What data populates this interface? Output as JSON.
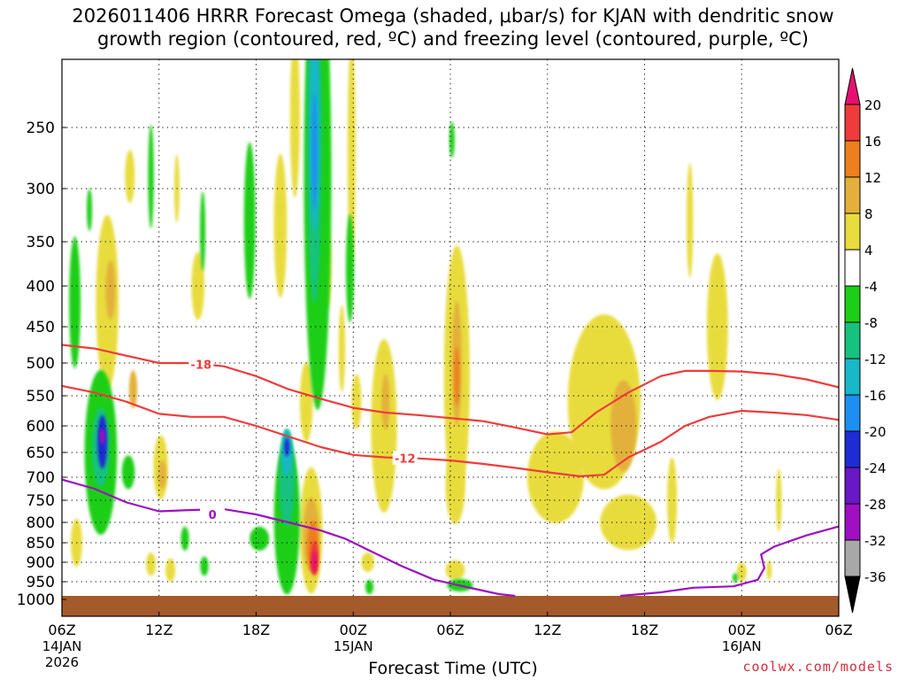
{
  "title": {
    "line1": "2026011406 HRRR Forecast Omega (shaded, μbar/s) for KJAN with dendritic snow",
    "line2": "growth region (contoured, red, ºC) and freezing level (contoured, purple, ºC)"
  },
  "credit": "coolwx.com/models",
  "chart_data": {
    "type": "heatmap",
    "title": "2026011406 HRRR Forecast Omega (shaded, μbar/s) for KJAN with dendritic snow growth region (contoured, red, ºC) and freezing level (contoured, purple, ºC)",
    "xlabel": "Forecast Time (UTC)",
    "ylabel": "",
    "x_unit": "forecast hour from 06Z 14JAN 2026",
    "xlim": [
      0,
      48
    ],
    "y_ticks": [
      250,
      300,
      350,
      400,
      450,
      500,
      550,
      600,
      650,
      700,
      750,
      800,
      850,
      900,
      950,
      1000
    ],
    "y_tick_labels": [
      "250",
      "300",
      "350",
      "400",
      "450",
      "500",
      "550",
      "600",
      "650",
      "700",
      "750",
      "800",
      "850",
      "900",
      "950",
      "1000"
    ],
    "ylim": [
      1000,
      200
    ],
    "x_ticks": [
      {
        "hour": 0,
        "label": "06Z",
        "sub1": "14JAN",
        "sub2": "2026"
      },
      {
        "hour": 6,
        "label": "12Z",
        "sub1": "",
        "sub2": ""
      },
      {
        "hour": 12,
        "label": "18Z",
        "sub1": "",
        "sub2": ""
      },
      {
        "hour": 18,
        "label": "00Z",
        "sub1": "15JAN",
        "sub2": ""
      },
      {
        "hour": 24,
        "label": "06Z",
        "sub1": "",
        "sub2": ""
      },
      {
        "hour": 30,
        "label": "12Z",
        "sub1": "",
        "sub2": ""
      },
      {
        "hour": 36,
        "label": "18Z",
        "sub1": "",
        "sub2": ""
      },
      {
        "hour": 42,
        "label": "00Z",
        "sub1": "16JAN",
        "sub2": ""
      },
      {
        "hour": 48,
        "label": "06Z",
        "sub1": "",
        "sub2": ""
      }
    ],
    "colorbar": {
      "levels": [
        "20",
        "16",
        "12",
        "8",
        "4",
        "-4",
        "-8",
        "-12",
        "-16",
        "-20",
        "-24",
        "-28",
        "-32",
        "-36"
      ],
      "colors": [
        "#e8106f",
        "#ef3b3b",
        "#ee7f1e",
        "#e3b13b",
        "#e8dc3e",
        "#ffffff",
        "#1ccf16",
        "#16c27d",
        "#18b8c8",
        "#1e8ff2",
        "#1e2cd6",
        "#6a17c7",
        "#9e10c2",
        "#a8a8a8",
        "#000000"
      ]
    },
    "omega_cells": [
      {
        "t": 2.8,
        "p": 420,
        "dt": 1.4,
        "dp": 210,
        "v": 4
      },
      {
        "t": 3.0,
        "p": 405,
        "dt": 0.6,
        "dp": 70,
        "v": 8
      },
      {
        "t": 4.2,
        "p": 290,
        "dt": 0.6,
        "dp": 45,
        "v": 4
      },
      {
        "t": 4.4,
        "p": 540,
        "dt": 0.5,
        "dp": 60,
        "v": 8
      },
      {
        "t": 0.9,
        "p": 850,
        "dt": 0.7,
        "dp": 120,
        "v": 4
      },
      {
        "t": 2.4,
        "p": 650,
        "dt": 2.0,
        "dp": 310,
        "v": -8
      },
      {
        "t": 2.4,
        "p": 640,
        "dt": 1.1,
        "dp": 150,
        "v": -12
      },
      {
        "t": 2.5,
        "p": 630,
        "dt": 0.6,
        "dp": 100,
        "v": -24
      },
      {
        "t": 2.5,
        "p": 620,
        "dt": 0.25,
        "dp": 30,
        "v": -32
      },
      {
        "t": 0.8,
        "p": 420,
        "dt": 0.7,
        "dp": 160,
        "v": -8
      },
      {
        "t": 1.7,
        "p": 320,
        "dt": 0.25,
        "dp": 40,
        "v": -8
      },
      {
        "t": 4.1,
        "p": 690,
        "dt": 0.8,
        "dp": 70,
        "v": -8
      },
      {
        "t": 6.1,
        "p": 680,
        "dt": 0.9,
        "dp": 130,
        "v": 4
      },
      {
        "t": 6.2,
        "p": 695,
        "dt": 0.5,
        "dp": 60,
        "v": 8
      },
      {
        "t": 5.5,
        "p": 905,
        "dt": 0.6,
        "dp": 60,
        "v": 4
      },
      {
        "t": 5.5,
        "p": 290,
        "dt": 0.35,
        "dp": 90,
        "v": -8
      },
      {
        "t": 6.7,
        "p": 920,
        "dt": 0.6,
        "dp": 60,
        "v": 4
      },
      {
        "t": 8.4,
        "p": 400,
        "dt": 0.8,
        "dp": 80,
        "v": 4
      },
      {
        "t": 8.7,
        "p": 340,
        "dt": 0.3,
        "dp": 80,
        "v": -8
      },
      {
        "t": 7.6,
        "p": 840,
        "dt": 0.5,
        "dp": 60,
        "v": -8
      },
      {
        "t": 7.1,
        "p": 300,
        "dt": 0.3,
        "dp": 60,
        "v": 4
      },
      {
        "t": 8.8,
        "p": 910,
        "dt": 0.5,
        "dp": 50,
        "v": -8
      },
      {
        "t": 11.6,
        "p": 330,
        "dt": 0.7,
        "dp": 150,
        "v": -8
      },
      {
        "t": 13.5,
        "p": 335,
        "dt": 0.8,
        "dp": 140,
        "v": 4
      },
      {
        "t": 12.2,
        "p": 840,
        "dt": 1.2,
        "dp": 60,
        "v": -8
      },
      {
        "t": 13.9,
        "p": 790,
        "dt": 1.6,
        "dp": 350,
        "v": -8
      },
      {
        "t": 13.9,
        "p": 700,
        "dt": 1.0,
        "dp": 200,
        "v": -12
      },
      {
        "t": 13.9,
        "p": 650,
        "dt": 0.6,
        "dp": 90,
        "v": -16
      },
      {
        "t": 13.9,
        "p": 640,
        "dt": 0.3,
        "dp": 35,
        "v": -24
      },
      {
        "t": 15.4,
        "p": 820,
        "dt": 1.4,
        "dp": 300,
        "v": 4
      },
      {
        "t": 15.4,
        "p": 830,
        "dt": 1.0,
        "dp": 180,
        "v": 8
      },
      {
        "t": 15.5,
        "p": 860,
        "dt": 0.7,
        "dp": 130,
        "v": 12
      },
      {
        "t": 15.6,
        "p": 890,
        "dt": 0.5,
        "dp": 90,
        "v": 16
      },
      {
        "t": 15.6,
        "p": 900,
        "dt": 0.3,
        "dp": 55,
        "v": 20
      },
      {
        "t": 15.1,
        "p": 560,
        "dt": 0.8,
        "dp": 130,
        "v": 4
      },
      {
        "t": 16.4,
        "p": 380,
        "dt": 0.5,
        "dp": 90,
        "v": 4
      },
      {
        "t": 17.3,
        "p": 480,
        "dt": 0.4,
        "dp": 120,
        "v": 4
      },
      {
        "t": 15.8,
        "p": 290,
        "dt": 1.7,
        "dp": 460,
        "v": -8
      },
      {
        "t": 15.6,
        "p": 260,
        "dt": 0.9,
        "dp": 300,
        "v": -12
      },
      {
        "t": 15.6,
        "p": 250,
        "dt": 0.6,
        "dp": 180,
        "v": -16
      },
      {
        "t": 15.6,
        "p": 270,
        "dt": 0.25,
        "dp": 100,
        "v": -20
      },
      {
        "t": 14.4,
        "p": 240,
        "dt": 0.6,
        "dp": 140,
        "v": 4
      },
      {
        "t": 17.9,
        "p": 270,
        "dt": 0.5,
        "dp": 200,
        "v": 4
      },
      {
        "t": 17.8,
        "p": 380,
        "dt": 0.5,
        "dp": 120,
        "v": -8
      },
      {
        "t": 18.2,
        "p": 560,
        "dt": 0.6,
        "dp": 90,
        "v": 4
      },
      {
        "t": 19.9,
        "p": 600,
        "dt": 1.6,
        "dp": 300,
        "v": 4
      },
      {
        "t": 20.0,
        "p": 560,
        "dt": 0.5,
        "dp": 90,
        "v": 8
      },
      {
        "t": 18.9,
        "p": 900,
        "dt": 0.8,
        "dp": 50,
        "v": 4
      },
      {
        "t": 19.0,
        "p": 965,
        "dt": 0.5,
        "dp": 40,
        "v": -8
      },
      {
        "t": 24.4,
        "p": 520,
        "dt": 1.6,
        "dp": 380,
        "v": 4
      },
      {
        "t": 24.4,
        "p": 500,
        "dt": 0.6,
        "dp": 180,
        "v": 8
      },
      {
        "t": 24.4,
        "p": 520,
        "dt": 0.3,
        "dp": 90,
        "v": 12
      },
      {
        "t": 24.1,
        "p": 260,
        "dt": 0.15,
        "dp": 30,
        "v": -8
      },
      {
        "t": 24.3,
        "p": 720,
        "dt": 1.2,
        "dp": 160,
        "v": 4
      },
      {
        "t": 24.3,
        "p": 920,
        "dt": 1.2,
        "dp": 50,
        "v": 4
      },
      {
        "t": 24.6,
        "p": 960,
        "dt": 1.6,
        "dp": 35,
        "v": -8
      },
      {
        "t": 33.5,
        "p": 560,
        "dt": 4.5,
        "dp": 280,
        "v": 4
      },
      {
        "t": 30.5,
        "p": 700,
        "dt": 3.5,
        "dp": 190,
        "v": 4
      },
      {
        "t": 35.0,
        "p": 800,
        "dt": 3.5,
        "dp": 130,
        "v": 4
      },
      {
        "t": 34.7,
        "p": 600,
        "dt": 1.6,
        "dp": 160,
        "v": 8
      },
      {
        "t": 40.5,
        "p": 450,
        "dt": 1.3,
        "dp": 190,
        "v": 4
      },
      {
        "t": 38.8,
        "p": 330,
        "dt": 0.4,
        "dp": 110,
        "v": 4
      },
      {
        "t": 37.7,
        "p": 750,
        "dt": 0.6,
        "dp": 190,
        "v": 4
      },
      {
        "t": 42.0,
        "p": 925,
        "dt": 0.6,
        "dp": 50,
        "v": 4
      },
      {
        "t": 41.6,
        "p": 940,
        "dt": 0.2,
        "dp": 25,
        "v": -8
      },
      {
        "t": 44.3,
        "p": 750,
        "dt": 0.35,
        "dp": 140,
        "v": 4
      },
      {
        "t": 43.7,
        "p": 920,
        "dt": 0.3,
        "dp": 50,
        "v": 4
      }
    ],
    "contours": [
      {
        "name": "-18 isotherm",
        "label": "-18",
        "label_at": [
          8.6,
          502
        ],
        "color": "#ef3b3b",
        "points": [
          [
            0,
            475
          ],
          [
            2,
            480
          ],
          [
            4,
            490
          ],
          [
            6,
            500
          ],
          [
            8,
            500
          ],
          [
            10,
            505
          ],
          [
            12,
            520
          ],
          [
            14,
            540
          ],
          [
            16,
            555
          ],
          [
            18,
            570
          ],
          [
            20,
            578
          ],
          [
            22,
            582
          ],
          [
            24,
            587
          ],
          [
            26,
            592
          ],
          [
            28,
            603
          ],
          [
            30,
            616
          ],
          [
            31.5,
            612
          ],
          [
            33,
            578
          ],
          [
            35,
            545
          ],
          [
            37,
            520
          ],
          [
            38.5,
            512
          ],
          [
            40,
            512
          ],
          [
            42,
            513
          ],
          [
            44,
            517
          ],
          [
            46,
            525
          ],
          [
            48,
            537
          ]
        ]
      },
      {
        "name": "-12 isotherm",
        "label": "-12",
        "label_at": [
          21.2,
          662
        ],
        "color": "#ef3b3b",
        "points": [
          [
            0,
            535
          ],
          [
            2,
            545
          ],
          [
            4,
            560
          ],
          [
            6,
            580
          ],
          [
            8,
            585
          ],
          [
            10,
            585
          ],
          [
            12,
            600
          ],
          [
            14,
            620
          ],
          [
            16,
            640
          ],
          [
            18,
            655
          ],
          [
            20,
            660
          ],
          [
            22,
            662
          ],
          [
            24,
            666
          ],
          [
            26,
            673
          ],
          [
            28,
            681
          ],
          [
            30,
            690
          ],
          [
            32,
            698
          ],
          [
            33.5,
            695
          ],
          [
            35,
            660
          ],
          [
            37,
            630
          ],
          [
            38.5,
            600
          ],
          [
            40,
            585
          ],
          [
            41,
            580
          ],
          [
            42,
            575
          ],
          [
            44,
            578
          ],
          [
            46,
            582
          ],
          [
            48,
            590
          ]
        ]
      },
      {
        "name": "0 isotherm (freezing level)",
        "label": "0",
        "label_at": [
          9.3,
          782
        ],
        "color": "#9c11c0",
        "points": [
          [
            0,
            705
          ],
          [
            2,
            725
          ],
          [
            4,
            755
          ],
          [
            6,
            775
          ],
          [
            8,
            772
          ],
          [
            10,
            770
          ],
          [
            12,
            782
          ],
          [
            14,
            800
          ],
          [
            16,
            820
          ],
          [
            17.5,
            840
          ],
          [
            19,
            870
          ],
          [
            21,
            910
          ],
          [
            23,
            945
          ],
          [
            25,
            965
          ],
          [
            27,
            985
          ],
          [
            28,
            990
          ]
        ]
      },
      {
        "name": "0 isotherm (freezing level, right)",
        "label": "",
        "label_at": null,
        "color": "#9c11c0",
        "points": [
          [
            34.5,
            990
          ],
          [
            37,
            980
          ],
          [
            39,
            967
          ],
          [
            41.5,
            963
          ],
          [
            43,
            945
          ],
          [
            43.4,
            915
          ],
          [
            43.2,
            880
          ],
          [
            44,
            860
          ],
          [
            46,
            832
          ],
          [
            48,
            810
          ]
        ]
      }
    ],
    "terrain_top_hpa": 990,
    "terrain_color": "#a45a2a",
    "contour_labels_unit": "ºC"
  }
}
